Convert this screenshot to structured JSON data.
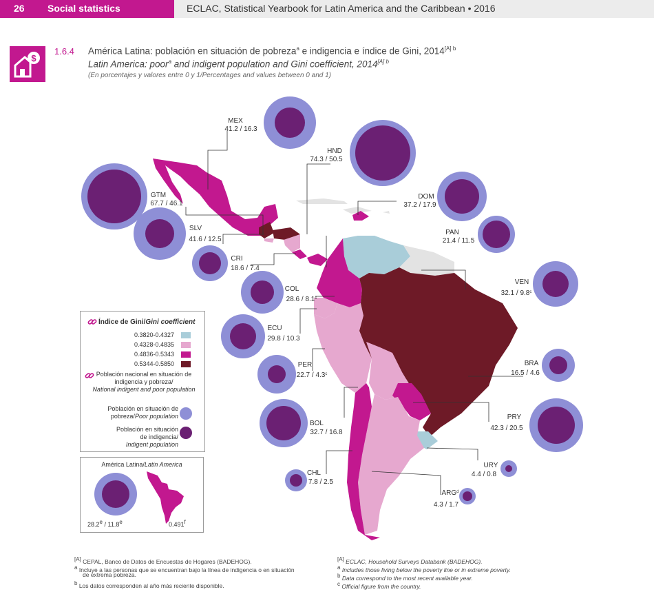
{
  "header": {
    "page_number": "26",
    "section": "Social statistics",
    "publication": "ECLAC, Statistical Yearbook for Latin America and the Caribbean • 2016"
  },
  "figure": {
    "number": "1.6.4",
    "title_es": "América Latina: población en situación de pobreza",
    "title_es_sup": "a",
    "title_es_rest": " e indigencia e índice de Gini, 2014",
    "title_es_refs": "[A] b",
    "title_en": "Latin America: poor",
    "title_en_sup": "a",
    "title_en_rest": " and indigent population and Gini coefficient, 2014",
    "title_en_refs": "[A] b",
    "subtitle": "(En porcentajes y valores entre 0 y 1/Percentages and values between 0 and 1)",
    "icon": "house-dollar-icon"
  },
  "chart_data": {
    "type": "map",
    "countries": [
      {
        "code": "MEX",
        "label": "41.2 / 16.3",
        "poverty": 41.2,
        "indigence": 16.3
      },
      {
        "code": "HND",
        "label": "74.3 / 50.5",
        "poverty": 74.3,
        "indigence": 50.5
      },
      {
        "code": "GTM",
        "label": "67.7 / 46.1",
        "poverty": 67.7,
        "indigence": 46.1
      },
      {
        "code": "DOM",
        "label": "37.2 / 17.9",
        "poverty": 37.2,
        "indigence": 17.9
      },
      {
        "code": "SLV",
        "label": "41.6 / 12.5",
        "poverty": 41.6,
        "indigence": 12.5
      },
      {
        "code": "PAN",
        "label": "21.4 / 11.5",
        "poverty": 21.4,
        "indigence": 11.5
      },
      {
        "code": "CRI",
        "label": "18.6 / 7.4",
        "poverty": 18.6,
        "indigence": 7.4
      },
      {
        "code": "VEN",
        "label": "32.1 / 9.8",
        "label_sup": "c",
        "poverty": 32.1,
        "indigence": 9.8
      },
      {
        "code": "COL",
        "label": "28.6 / 8.1",
        "label_sup": "c",
        "poverty": 28.6,
        "indigence": 8.1
      },
      {
        "code": "ECU",
        "label": "29.8 / 10.3",
        "poverty": 29.8,
        "indigence": 10.3
      },
      {
        "code": "BRA",
        "label": "16.5 / 4.6",
        "poverty": 16.5,
        "indigence": 4.6
      },
      {
        "code": "PER",
        "label": "22.7 / 4.3",
        "label_sup": "c",
        "poverty": 22.7,
        "indigence": 4.3
      },
      {
        "code": "PRY",
        "label": "42.3 / 20.5",
        "poverty": 42.3,
        "indigence": 20.5
      },
      {
        "code": "BOL",
        "label": "32.7 / 16.8",
        "poverty": 32.7,
        "indigence": 16.8
      },
      {
        "code": "URY",
        "label": "4.4 / 0.8",
        "poverty": 4.4,
        "indigence": 0.8
      },
      {
        "code": "CHL",
        "label": "7.8 / 2.5",
        "poverty": 7.8,
        "indigence": 2.5
      },
      {
        "code": "ARG",
        "code_sup": "d",
        "label": "4.3 / 1.7",
        "poverty": 4.3,
        "indigence": 1.7
      }
    ],
    "latin_america": {
      "label": "28.2",
      "label_sup1": "e",
      "label_mid": " / 11.8",
      "label_sup2": "e",
      "poverty": 28.2,
      "indigence": 11.8,
      "gini": "0.491",
      "gini_sup": "f"
    }
  },
  "legend": {
    "gini_title_es": "Índice de Gini/",
    "gini_title_en": "Gini coefficient",
    "ranges": [
      {
        "label": "0.3820-0.4327",
        "color": "#a9cdd9"
      },
      {
        "label": "0.4328-0.4835",
        "color": "#e6a8cf"
      },
      {
        "label": "0.4836-0.5343",
        "color": "#c2188f"
      },
      {
        "label": "0.5344-0.5850",
        "color": "#6e1a27"
      }
    ],
    "pop_title_line1": "Población nacional en situación de",
    "pop_title_line2": "indigencia y pobreza/",
    "pop_title_line3": "National indigent and poor population",
    "poverty_es": "Población en situación de",
    "poverty_line2": "pobreza/",
    "poverty_en": "Poor population",
    "poverty_color": "#8e8fd6",
    "indigence_es": "Población en situación",
    "indigence_line2": "de indigencia/",
    "indigence_en": "Indigent population",
    "indigence_color": "#6b2073"
  },
  "inset": {
    "title_es": "América Latina/",
    "title_en": "Latin America"
  },
  "notes": {
    "a_ref": "[A]",
    "a_text": "CEPAL, Banco de Datos de Encuestas de Hogares (BADEHOG).",
    "a_ref_en": "[A]",
    "a_text_en": "ECLAC, Household Surveys Databank (BADEHOG).",
    "a_mark": "a",
    "a_es": "Incluye a las personas que se encuentran bajo la línea de indigencia o en situación",
    "a_es2": "de extrema pobreza.",
    "a_en": "Includes those living below the poverty line or in extreme poverty.",
    "b_mark": "b",
    "b_es": "Los datos corresponden al año más reciente disponible.",
    "b_en": "Data correspond to the most recent available year.",
    "c_mark": "c",
    "c_en": "Official figure from the country."
  }
}
